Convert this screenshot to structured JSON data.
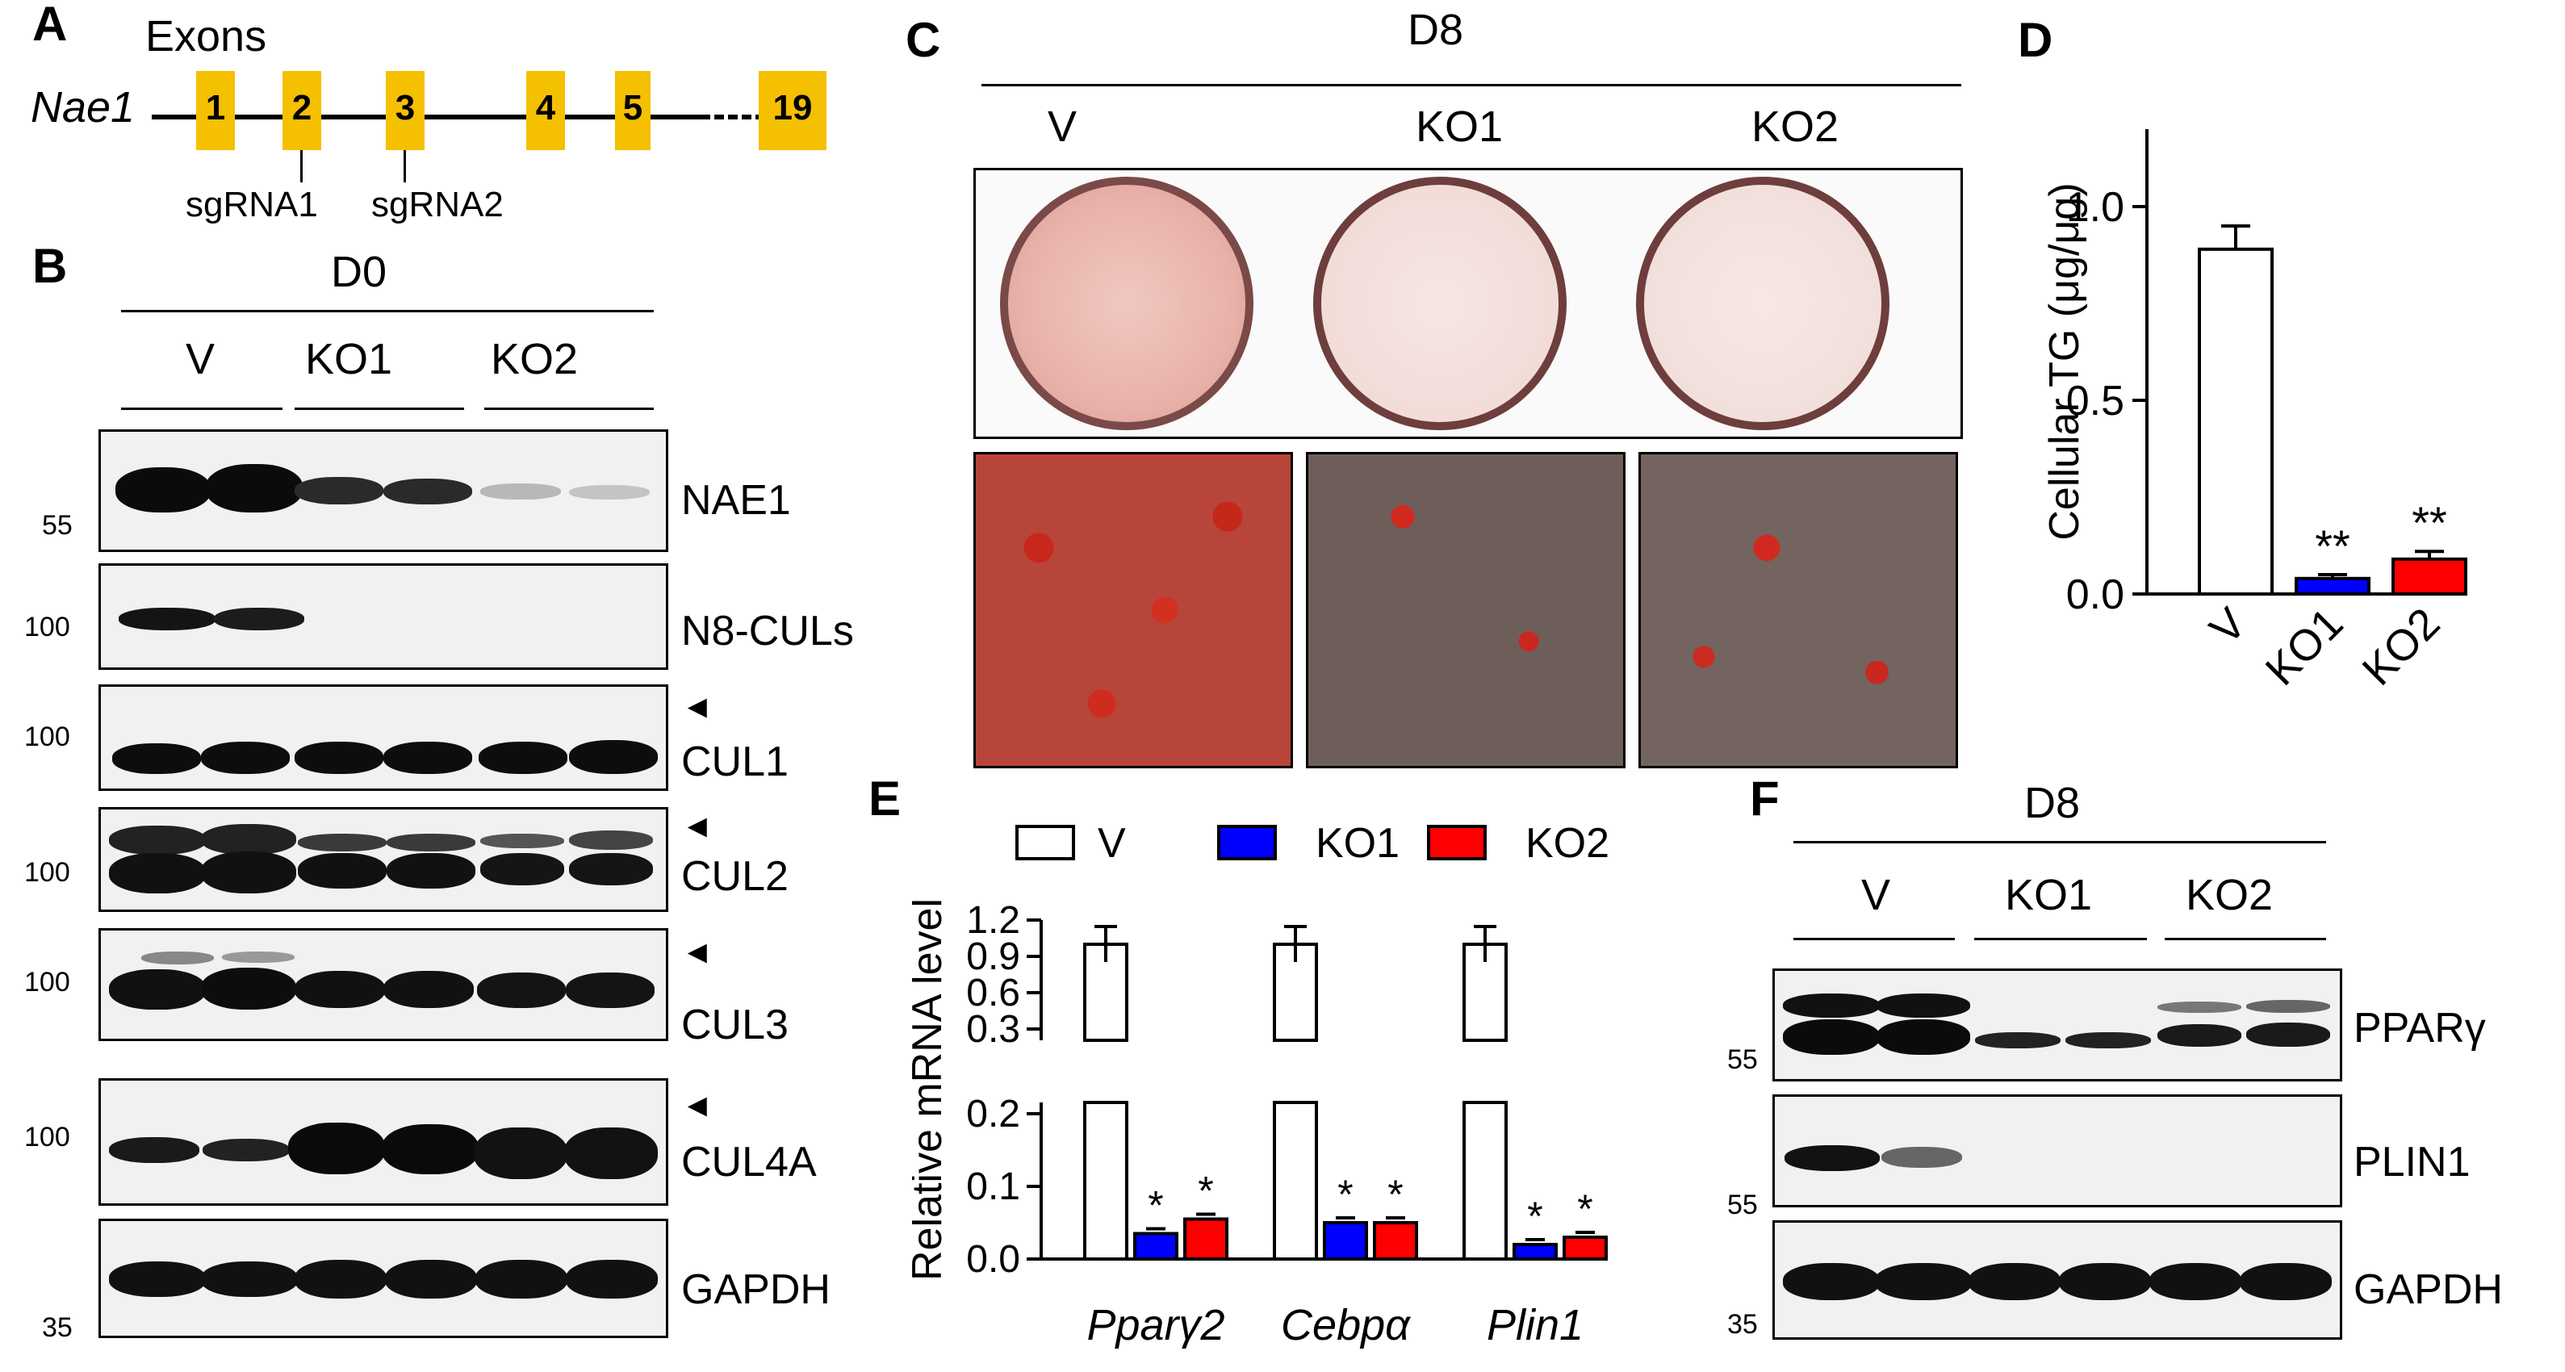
{
  "panels": {
    "A": {
      "letter": "A",
      "exons_title": "Exons",
      "gene": "Nae1",
      "exons": [
        "1",
        "2",
        "3",
        "4",
        "5",
        "19"
      ],
      "sgrna1": "sgRNA1",
      "sgrna2": "sgRNA2",
      "exon_color": "#f5c000"
    },
    "B": {
      "letter": "B",
      "day": "D0",
      "groups": [
        "V",
        "KO1",
        "KO2"
      ],
      "blots": [
        {
          "label": "NAE1",
          "marker": "55"
        },
        {
          "label": "N8-CULs",
          "marker": "100"
        },
        {
          "label": "CUL1",
          "marker": "100"
        },
        {
          "label": "CUL2",
          "marker": "100"
        },
        {
          "label": "CUL3",
          "marker": "100"
        },
        {
          "label": "CUL4A",
          "marker": "100"
        },
        {
          "label": "GAPDH",
          "marker": "35"
        }
      ],
      "arrow": "◄"
    },
    "C": {
      "letter": "C",
      "day": "D8",
      "groups": [
        "V",
        "KO1",
        "KO2"
      ]
    },
    "D": {
      "letter": "D",
      "ylabel": "Cellular TG (μg/μg)",
      "yticks": [
        "0.0",
        "0.5",
        "1.0"
      ],
      "categories": [
        "V",
        "KO1",
        "KO2"
      ],
      "significance": [
        "",
        "**",
        "**"
      ]
    },
    "E": {
      "letter": "E",
      "ylabel": "Relative mRNA level",
      "legend": [
        "V",
        "KO1",
        "KO2"
      ],
      "yticks_upper": [
        "0.3",
        "0.6",
        "0.9",
        "1.2"
      ],
      "yticks_lower": [
        "0.0",
        "0.1",
        "0.2"
      ],
      "genes": [
        "Pparγ2",
        "Cebpα",
        "Plin1"
      ],
      "star": "*"
    },
    "F": {
      "letter": "F",
      "day": "D8",
      "groups": [
        "V",
        "KO1",
        "KO2"
      ],
      "blots": [
        {
          "label": "PPARγ",
          "marker": "55"
        },
        {
          "label": "PLIN1",
          "marker": "55"
        },
        {
          "label": "GAPDH",
          "marker": "35"
        }
      ]
    }
  },
  "colors": {
    "V": "#ffffff",
    "KO1": "#0000ff",
    "KO2": "#ff0000"
  },
  "chart_data": [
    {
      "type": "bar",
      "panel": "D",
      "categories": [
        "V",
        "KO1",
        "KO2"
      ],
      "values": [
        0.89,
        0.04,
        0.09
      ],
      "errors": [
        0.06,
        0.01,
        0.02
      ],
      "ylabel": "Cellular TG (μg/μg)",
      "ylim": [
        0,
        1.2
      ]
    },
    {
      "type": "bar",
      "panel": "E",
      "categories": [
        "Pparγ2",
        "Cebpα",
        "Plin1"
      ],
      "series": [
        {
          "name": "V",
          "values": [
            1.0,
            1.0,
            1.0
          ]
        },
        {
          "name": "KO1",
          "values": [
            0.035,
            0.05,
            0.02
          ]
        },
        {
          "name": "KO2",
          "values": [
            0.055,
            0.05,
            0.03
          ]
        }
      ],
      "ylabel": "Relative mRNA level",
      "ylim": [
        0,
        1.2
      ],
      "axis_break": [
        0.2,
        0.3
      ]
    }
  ]
}
